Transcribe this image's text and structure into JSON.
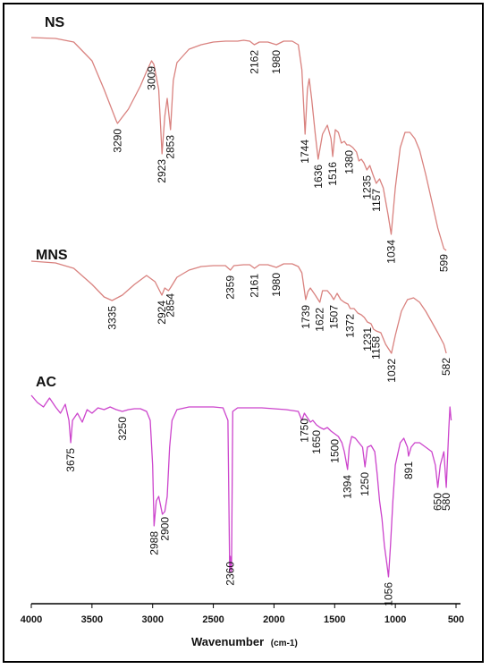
{
  "chart_data": {
    "type": "line",
    "xlabel": "Wavenumber",
    "xlabel_unit": "(cm-1)",
    "xlim": [
      4000,
      500
    ],
    "x_ticks": [
      "4000",
      "3500",
      "3000",
      "2500",
      "2000",
      "1500",
      "1000",
      "500"
    ],
    "series": [
      {
        "name": "NS",
        "color": "#d9827f",
        "points": [
          [
            4000,
            42
          ],
          [
            3800,
            43
          ],
          [
            3650,
            47
          ],
          [
            3500,
            68
          ],
          [
            3400,
            100
          ],
          [
            3300,
            135
          ],
          [
            3290,
            138
          ],
          [
            3200,
            122
          ],
          [
            3100,
            96
          ],
          [
            3050,
            80
          ],
          [
            3009,
            68
          ],
          [
            2990,
            72
          ],
          [
            2950,
            100
          ],
          [
            2923,
            172
          ],
          [
            2900,
            130
          ],
          [
            2880,
            110
          ],
          [
            2853,
            145
          ],
          [
            2830,
            90
          ],
          [
            2800,
            70
          ],
          [
            2700,
            55
          ],
          [
            2600,
            50
          ],
          [
            2500,
            47
          ],
          [
            2400,
            46
          ],
          [
            2300,
            46
          ],
          [
            2250,
            45
          ],
          [
            2200,
            46
          ],
          [
            2162,
            50
          ],
          [
            2120,
            47
          ],
          [
            2050,
            47
          ],
          [
            1980,
            50
          ],
          [
            1920,
            46
          ],
          [
            1850,
            46
          ],
          [
            1800,
            50
          ],
          [
            1770,
            78
          ],
          [
            1744,
            150
          ],
          [
            1725,
            100
          ],
          [
            1710,
            88
          ],
          [
            1690,
            110
          ],
          [
            1660,
            150
          ],
          [
            1636,
            178
          ],
          [
            1600,
            150
          ],
          [
            1560,
            140
          ],
          [
            1530,
            155
          ],
          [
            1516,
            175
          ],
          [
            1495,
            145
          ],
          [
            1470,
            148
          ],
          [
            1445,
            160
          ],
          [
            1420,
            158
          ],
          [
            1400,
            162
          ],
          [
            1380,
            162
          ],
          [
            1350,
            165
          ],
          [
            1320,
            170
          ],
          [
            1300,
            180
          ],
          [
            1280,
            178
          ],
          [
            1260,
            182
          ],
          [
            1235,
            190
          ],
          [
            1210,
            185
          ],
          [
            1185,
            195
          ],
          [
            1157,
            205
          ],
          [
            1130,
            200
          ],
          [
            1100,
            210
          ],
          [
            1060,
            240
          ],
          [
            1034,
            262
          ],
          [
            1000,
            210
          ],
          [
            960,
            165
          ],
          [
            920,
            148
          ],
          [
            880,
            148
          ],
          [
            840,
            155
          ],
          [
            800,
            168
          ],
          [
            750,
            195
          ],
          [
            700,
            225
          ],
          [
            650,
            255
          ],
          [
            600,
            278
          ],
          [
            580,
            280
          ]
        ],
        "peaks": [
          {
            "label": "3290",
            "x": 3290
          },
          {
            "label": "3009",
            "x": 3009
          },
          {
            "label": "2923",
            "x": 2923
          },
          {
            "label": "2853",
            "x": 2853
          },
          {
            "label": "2162",
            "x": 2162
          },
          {
            "label": "1980",
            "x": 1980
          },
          {
            "label": "1744",
            "x": 1744
          },
          {
            "label": "1636",
            "x": 1636
          },
          {
            "label": "1516",
            "x": 1516
          },
          {
            "label": "1380",
            "x": 1380
          },
          {
            "label": "1235",
            "x": 1235
          },
          {
            "label": "1157",
            "x": 1157
          },
          {
            "label": "1034",
            "x": 1034
          },
          {
            "label": "599",
            "x": 599
          }
        ]
      },
      {
        "name": "MNS",
        "color": "#d9827f",
        "points": [
          [
            4000,
            292
          ],
          [
            3800,
            294
          ],
          [
            3650,
            300
          ],
          [
            3500,
            318
          ],
          [
            3400,
            332
          ],
          [
            3335,
            336
          ],
          [
            3250,
            330
          ],
          [
            3150,
            318
          ],
          [
            3050,
            308
          ],
          [
            2980,
            315
          ],
          [
            2924,
            330
          ],
          [
            2900,
            322
          ],
          [
            2870,
            325
          ],
          [
            2854,
            322
          ],
          [
            2800,
            310
          ],
          [
            2700,
            302
          ],
          [
            2600,
            298
          ],
          [
            2500,
            297
          ],
          [
            2400,
            297
          ],
          [
            2359,
            302
          ],
          [
            2330,
            297
          ],
          [
            2250,
            296
          ],
          [
            2200,
            296
          ],
          [
            2161,
            300
          ],
          [
            2120,
            296
          ],
          [
            2050,
            296
          ],
          [
            1980,
            299
          ],
          [
            1920,
            295
          ],
          [
            1850,
            295
          ],
          [
            1800,
            298
          ],
          [
            1770,
            305
          ],
          [
            1739,
            335
          ],
          [
            1720,
            326
          ],
          [
            1700,
            322
          ],
          [
            1660,
            330
          ],
          [
            1622,
            338
          ],
          [
            1600,
            325
          ],
          [
            1560,
            325
          ],
          [
            1530,
            330
          ],
          [
            1507,
            335
          ],
          [
            1480,
            328
          ],
          [
            1450,
            335
          ],
          [
            1420,
            338
          ],
          [
            1390,
            340
          ],
          [
            1372,
            345
          ],
          [
            1340,
            345
          ],
          [
            1310,
            350
          ],
          [
            1280,
            352
          ],
          [
            1255,
            355
          ],
          [
            1231,
            360
          ],
          [
            1200,
            362
          ],
          [
            1180,
            368
          ],
          [
            1158,
            370
          ],
          [
            1120,
            372
          ],
          [
            1080,
            385
          ],
          [
            1032,
            395
          ],
          [
            1000,
            375
          ],
          [
            950,
            348
          ],
          [
            900,
            335
          ],
          [
            850,
            333
          ],
          [
            800,
            338
          ],
          [
            750,
            348
          ],
          [
            700,
            360
          ],
          [
            650,
            372
          ],
          [
            600,
            385
          ],
          [
            580,
            395
          ]
        ],
        "peaks": [
          {
            "label": "3335",
            "x": 3335
          },
          {
            "label": "2924",
            "x": 2924
          },
          {
            "label": "2854",
            "x": 2854
          },
          {
            "label": "2359",
            "x": 2359
          },
          {
            "label": "2161",
            "x": 2161
          },
          {
            "label": "1980",
            "x": 1980
          },
          {
            "label": "1739",
            "x": 1739
          },
          {
            "label": "1622",
            "x": 1622
          },
          {
            "label": "1507",
            "x": 1507
          },
          {
            "label": "1372",
            "x": 1372
          },
          {
            "label": "1231",
            "x": 1231
          },
          {
            "label": "1158",
            "x": 1158
          },
          {
            "label": "1032",
            "x": 1032
          },
          {
            "label": "582",
            "x": 582
          }
        ]
      },
      {
        "name": "AC",
        "color": "#cc44cc",
        "points": [
          [
            4000,
            442
          ],
          [
            3950,
            450
          ],
          [
            3900,
            455
          ],
          [
            3850,
            445
          ],
          [
            3800,
            455
          ],
          [
            3760,
            462
          ],
          [
            3720,
            452
          ],
          [
            3690,
            470
          ],
          [
            3675,
            495
          ],
          [
            3660,
            470
          ],
          [
            3620,
            462
          ],
          [
            3580,
            472
          ],
          [
            3540,
            458
          ],
          [
            3500,
            462
          ],
          [
            3450,
            456
          ],
          [
            3400,
            458
          ],
          [
            3350,
            455
          ],
          [
            3300,
            458
          ],
          [
            3250,
            460
          ],
          [
            3200,
            458
          ],
          [
            3150,
            457
          ],
          [
            3100,
            457
          ],
          [
            3050,
            460
          ],
          [
            3020,
            470
          ],
          [
            3000,
            520
          ],
          [
            2988,
            588
          ],
          [
            2970,
            560
          ],
          [
            2950,
            555
          ],
          [
            2920,
            575
          ],
          [
            2900,
            572
          ],
          [
            2880,
            555
          ],
          [
            2860,
            500
          ],
          [
            2840,
            470
          ],
          [
            2800,
            458
          ],
          [
            2700,
            455
          ],
          [
            2600,
            455
          ],
          [
            2500,
            455
          ],
          [
            2420,
            456
          ],
          [
            2380,
            470
          ],
          [
            2365,
            640
          ],
          [
            2360,
            622
          ],
          [
            2350,
            640
          ],
          [
            2340,
            460
          ],
          [
            2300,
            456
          ],
          [
            2200,
            456
          ],
          [
            2100,
            456
          ],
          [
            2000,
            457
          ],
          [
            1900,
            458
          ],
          [
            1800,
            460
          ],
          [
            1770,
            470
          ],
          [
            1750,
            462
          ],
          [
            1720,
            468
          ],
          [
            1700,
            472
          ],
          [
            1680,
            470
          ],
          [
            1650,
            475
          ],
          [
            1620,
            478
          ],
          [
            1590,
            480
          ],
          [
            1560,
            478
          ],
          [
            1530,
            482
          ],
          [
            1500,
            485
          ],
          [
            1470,
            488
          ],
          [
            1440,
            495
          ],
          [
            1420,
            505
          ],
          [
            1394,
            525
          ],
          [
            1380,
            500
          ],
          [
            1360,
            488
          ],
          [
            1330,
            490
          ],
          [
            1300,
            495
          ],
          [
            1270,
            500
          ],
          [
            1250,
            522
          ],
          [
            1230,
            500
          ],
          [
            1200,
            498
          ],
          [
            1170,
            505
          ],
          [
            1150,
            530
          ],
          [
            1130,
            560
          ],
          [
            1110,
            580
          ],
          [
            1090,
            610
          ],
          [
            1070,
            630
          ],
          [
            1056,
            645
          ],
          [
            1040,
            610
          ],
          [
            1020,
            560
          ],
          [
            1000,
            520
          ],
          [
            960,
            495
          ],
          [
            930,
            490
          ],
          [
            900,
            500
          ],
          [
            891,
            510
          ],
          [
            870,
            500
          ],
          [
            840,
            495
          ],
          [
            800,
            495
          ],
          [
            750,
            500
          ],
          [
            700,
            505
          ],
          [
            670,
            520
          ],
          [
            650,
            545
          ],
          [
            630,
            520
          ],
          [
            600,
            505
          ],
          [
            580,
            545
          ],
          [
            560,
            480
          ],
          [
            550,
            455
          ],
          [
            540,
            470
          ]
        ],
        "peaks": [
          {
            "label": "3675",
            "x": 3675
          },
          {
            "label": "3250",
            "x": 3250
          },
          {
            "label": "2988",
            "x": 2988
          },
          {
            "label": "2900",
            "x": 2900
          },
          {
            "label": "2360",
            "x": 2360
          },
          {
            "label": "1750",
            "x": 1750
          },
          {
            "label": "1650",
            "x": 1650
          },
          {
            "label": "1500",
            "x": 1500
          },
          {
            "label": "1394",
            "x": 1394
          },
          {
            "label": "1250",
            "x": 1250
          },
          {
            "label": "1056",
            "x": 1056
          },
          {
            "label": "891",
            "x": 891
          },
          {
            "label": "650",
            "x": 650
          },
          {
            "label": "580",
            "x": 580
          }
        ]
      }
    ]
  }
}
